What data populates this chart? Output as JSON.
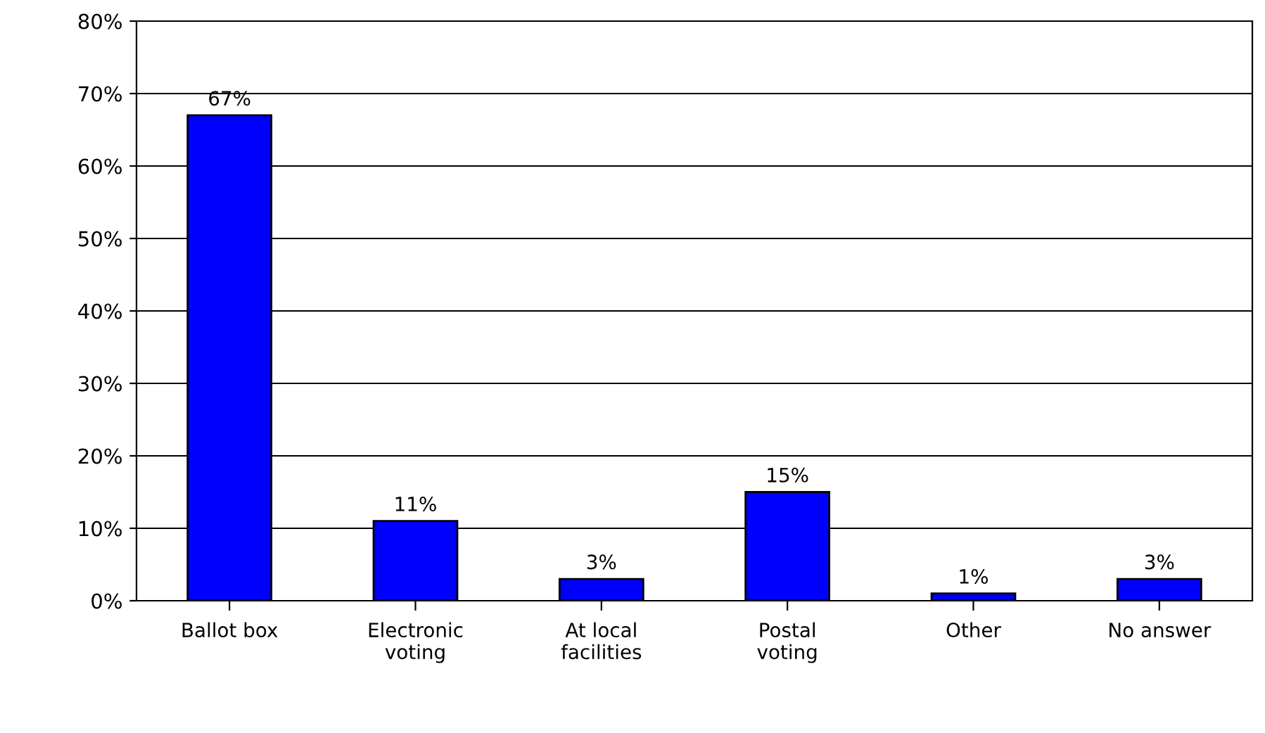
{
  "chart_data": {
    "type": "bar",
    "categories": [
      "Ballot box",
      "Electronic\nvoting",
      "At local\nfacilities",
      "Postal\nvoting",
      "Other",
      "No answer"
    ],
    "values": [
      67,
      11,
      3,
      15,
      1,
      3
    ],
    "value_labels": [
      "67%",
      "11%",
      "3%",
      "15%",
      "1%",
      "3%"
    ],
    "color": "#0000ff",
    "ylim": [
      0,
      80
    ],
    "yticks": [
      {
        "value": 0,
        "label": "0%"
      },
      {
        "value": 10,
        "label": "10%"
      },
      {
        "value": 20,
        "label": "20%"
      },
      {
        "value": 30,
        "label": "30%"
      },
      {
        "value": 40,
        "label": "40%"
      },
      {
        "value": 50,
        "label": "50%"
      },
      {
        "value": 60,
        "label": "60%"
      },
      {
        "value": 70,
        "label": "70%"
      },
      {
        "value": 80,
        "label": "80%"
      }
    ],
    "grid": "y"
  }
}
